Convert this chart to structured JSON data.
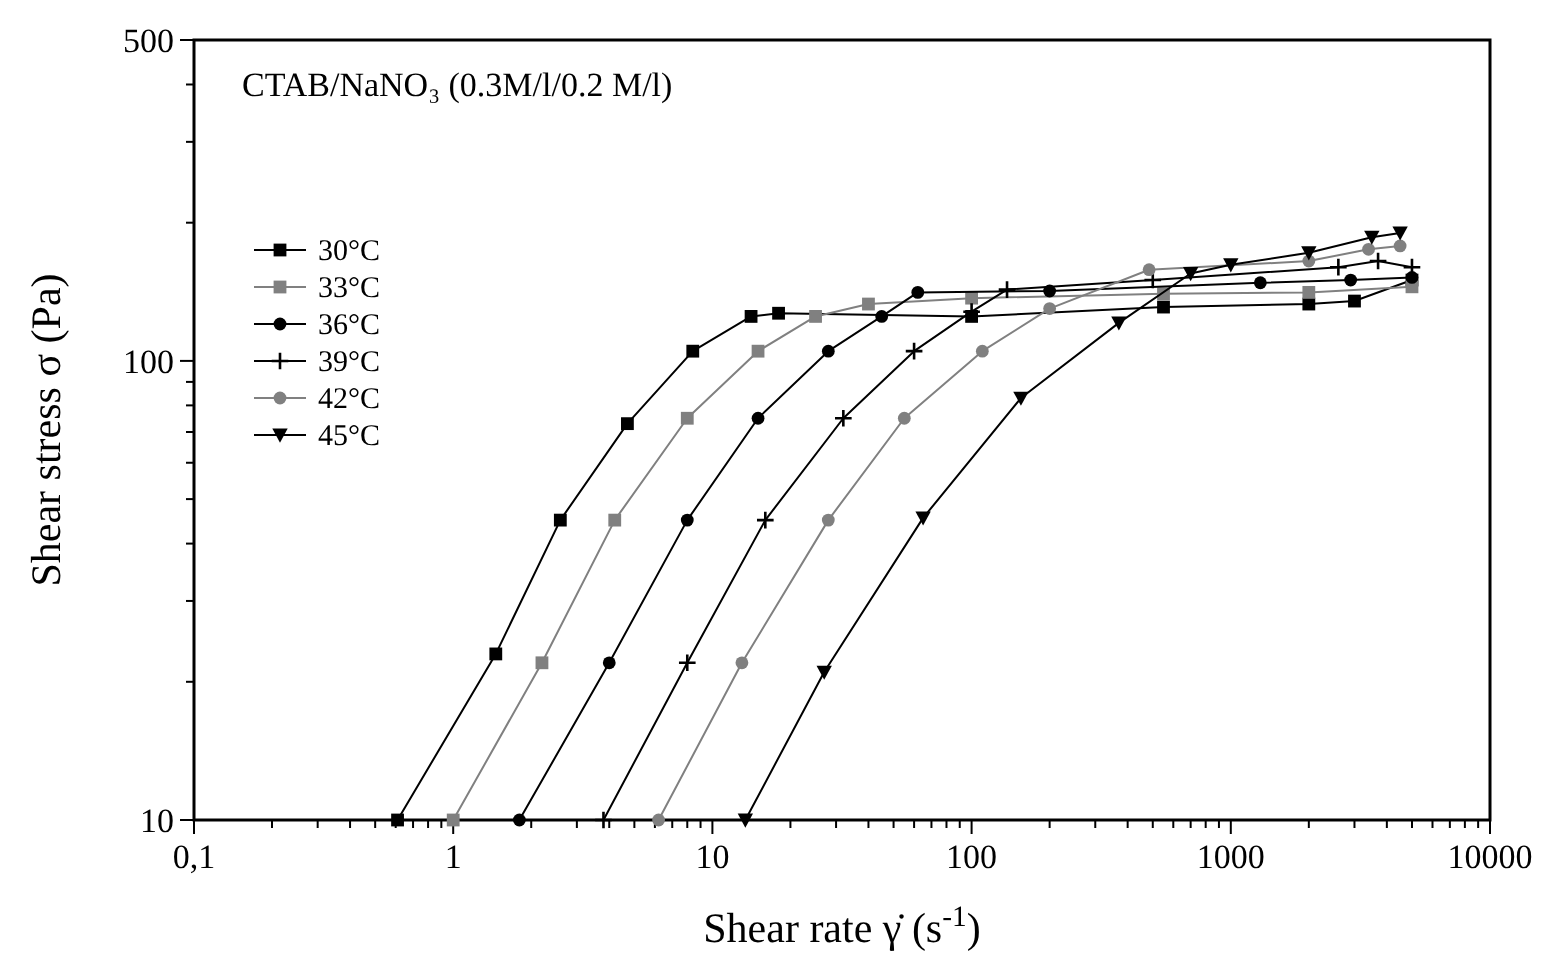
{
  "chart_data": {
    "type": "line",
    "title": "CTAB/NaNO₃ (0.3M/l/0.2 M/l)",
    "xlabel": "Shear rate γ̇ (s$^{-1}$)",
    "ylabel": "Shear stress σ (Pa)",
    "log": "xy",
    "xlim": [
      0.1,
      10000
    ],
    "ylim": [
      10,
      500
    ],
    "xticks": [
      {
        "value": 0.1,
        "label": "0,1"
      },
      {
        "value": 0.2,
        "label": null
      },
      {
        "value": 0.3,
        "label": null
      },
      {
        "value": 0.4,
        "label": null
      },
      {
        "value": 0.5,
        "label": null
      },
      {
        "value": 0.6,
        "label": null
      },
      {
        "value": 0.7,
        "label": null
      },
      {
        "value": 0.8,
        "label": null
      },
      {
        "value": 0.9,
        "label": null
      },
      1,
      {
        "value": 2,
        "label": null
      },
      {
        "value": 3,
        "label": null
      },
      {
        "value": 4,
        "label": null
      },
      {
        "value": 5,
        "label": null
      },
      {
        "value": 6,
        "label": null
      },
      {
        "value": 7,
        "label": null
      },
      {
        "value": 8,
        "label": null
      },
      {
        "value": 9,
        "label": null
      },
      10,
      {
        "value": 20,
        "label": null
      },
      {
        "value": 30,
        "label": null
      },
      {
        "value": 40,
        "label": null
      },
      {
        "value": 50,
        "label": null
      },
      {
        "value": 60,
        "label": null
      },
      {
        "value": 70,
        "label": null
      },
      {
        "value": 80,
        "label": null
      },
      {
        "value": 90,
        "label": null
      },
      100,
      {
        "value": 200,
        "label": null
      },
      {
        "value": 300,
        "label": null
      },
      {
        "value": 400,
        "label": null
      },
      {
        "value": 500,
        "label": null
      },
      {
        "value": 600,
        "label": null
      },
      {
        "value": 700,
        "label": null
      },
      {
        "value": 800,
        "label": null
      },
      {
        "value": 900,
        "label": null
      },
      1000,
      {
        "value": 2000,
        "label": null
      },
      {
        "value": 3000,
        "label": null
      },
      {
        "value": 4000,
        "label": null
      },
      {
        "value": 5000,
        "label": null
      },
      {
        "value": 6000,
        "label": null
      },
      {
        "value": 7000,
        "label": null
      },
      {
        "value": 8000,
        "label": null
      },
      {
        "value": 9000,
        "label": null
      },
      10000
    ],
    "yticks": [
      10,
      {
        "value": 20,
        "label": null
      },
      {
        "value": 30,
        "label": null
      },
      {
        "value": 40,
        "label": null
      },
      {
        "value": 50,
        "label": null
      },
      {
        "value": 60,
        "label": null
      },
      {
        "value": 70,
        "label": null
      },
      {
        "value": 80,
        "label": null
      },
      {
        "value": 90,
        "label": null
      },
      100,
      {
        "value": 200,
        "label": null
      },
      {
        "value": 300,
        "label": null
      },
      {
        "value": 400,
        "label": null
      },
      500
    ],
    "grid": false,
    "legend": "top left",
    "line_style": "solid",
    "series": [
      {
        "name": "30°C",
        "color": "#000000",
        "marker": "square",
        "x": [
          0.61,
          1.46,
          2.59,
          4.7,
          8.4,
          14.1,
          18,
          100,
          550,
          2000,
          3000,
          5000
        ],
        "values": [
          10,
          23,
          45,
          73,
          105,
          125,
          127,
          125,
          131,
          133,
          135,
          150
        ]
      },
      {
        "name": "33°C",
        "color": "#808080",
        "marker": "square",
        "x": [
          1.0,
          2.2,
          4.2,
          8,
          15,
          25,
          40,
          100,
          550,
          2000,
          5000
        ],
        "values": [
          10,
          22,
          45,
          75,
          105,
          125,
          133,
          137,
          140,
          141,
          145
        ]
      },
      {
        "name": "36°C",
        "color": "#000000",
        "marker": "circle",
        "x": [
          1.8,
          4,
          8,
          15,
          28,
          45,
          62,
          200,
          1300,
          2900,
          5000
        ],
        "values": [
          10,
          22,
          45,
          75,
          105,
          125,
          141,
          142,
          148,
          150,
          152
        ]
      },
      {
        "name": "39°C",
        "color": "#000000",
        "marker": "cross",
        "x": [
          3.8,
          8,
          16,
          32,
          60,
          100,
          137,
          500,
          2600,
          3700,
          5000
        ],
        "values": [
          10,
          22,
          45,
          75,
          105,
          128,
          143,
          150,
          160,
          165,
          160
        ]
      },
      {
        "name": "42°C",
        "color": "#808080",
        "marker": "circle",
        "x": [
          6.2,
          13,
          28,
          55,
          110,
          200,
          484,
          2000,
          3400,
          4500
        ],
        "values": [
          10,
          22,
          45,
          75,
          105,
          130,
          158,
          165,
          175,
          178
        ]
      },
      {
        "name": "45°C",
        "color": "#000000",
        "marker": "triangle",
        "x": [
          13.4,
          27,
          65,
          155,
          370,
          700,
          1000,
          2000,
          3500,
          4500
        ],
        "values": [
          10,
          21,
          45.5,
          83,
          121,
          155,
          162,
          172,
          186,
          190
        ]
      }
    ]
  }
}
